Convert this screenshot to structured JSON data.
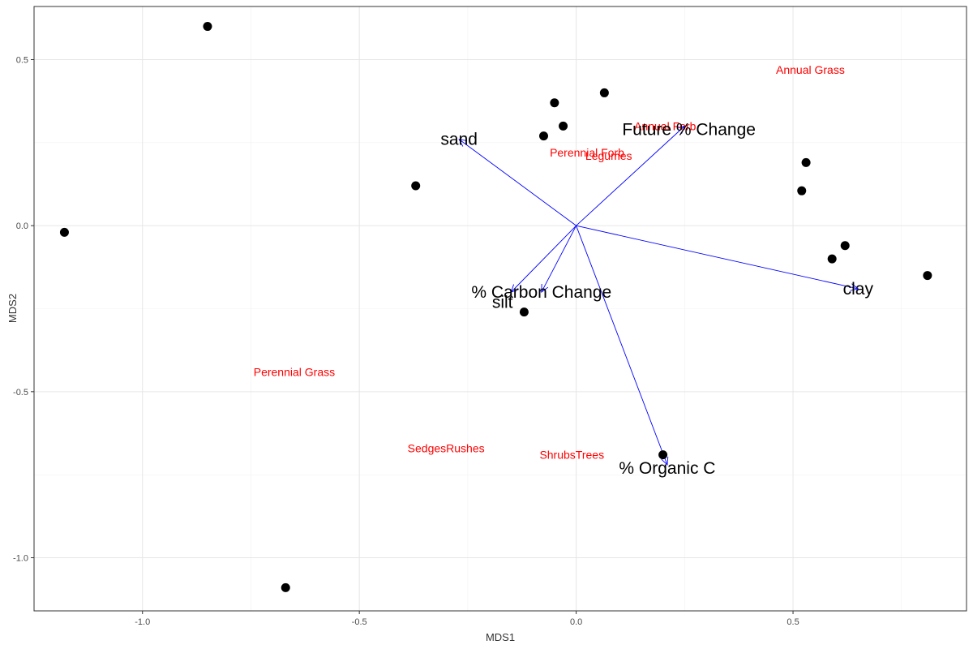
{
  "chart_data": {
    "type": "scatter",
    "title": "",
    "xlabel": "MDS1",
    "ylabel": "MDS2",
    "xlim": [
      -1.25,
      0.9
    ],
    "ylim": [
      -1.16,
      0.66
    ],
    "x_ticks": [
      -1.0,
      -0.5,
      0.0,
      0.5
    ],
    "x_tick_labels": [
      "-1.0",
      "-0.5",
      "0.0",
      "0.5"
    ],
    "y_ticks": [
      -1.0,
      -0.5,
      0.0,
      0.5
    ],
    "y_tick_labels": [
      "-1.0",
      "-0.5",
      "0.0",
      "0.5"
    ],
    "grid": true,
    "colors": {
      "points": "#000000",
      "vectors": "#0000ff",
      "species_labels": "#ff0000",
      "vector_labels": "#000000"
    },
    "sites": [
      {
        "x": -0.85,
        "y": 0.6
      },
      {
        "x": -1.18,
        "y": -0.02
      },
      {
        "x": -0.37,
        "y": 0.12
      },
      {
        "x": -0.67,
        "y": -1.09
      },
      {
        "x": -0.05,
        "y": 0.37
      },
      {
        "x": 0.065,
        "y": 0.4
      },
      {
        "x": -0.03,
        "y": 0.3
      },
      {
        "x": -0.075,
        "y": 0.27
      },
      {
        "x": 0.53,
        "y": 0.19
      },
      {
        "x": 0.52,
        "y": 0.105
      },
      {
        "x": 0.62,
        "y": -0.06
      },
      {
        "x": 0.59,
        "y": -0.1
      },
      {
        "x": 0.81,
        "y": -0.15
      },
      {
        "x": -0.12,
        "y": -0.26
      },
      {
        "x": 0.2,
        "y": -0.69
      }
    ],
    "species": [
      {
        "label": "Annual Grass",
        "x": 0.54,
        "y": 0.47
      },
      {
        "label": "Annual Forb",
        "x": 0.205,
        "y": 0.3
      },
      {
        "label": "Perennial Forb",
        "x": 0.025,
        "y": 0.22
      },
      {
        "label": "Legumes",
        "x": 0.075,
        "y": 0.21
      },
      {
        "label": "Perennial Grass",
        "x": -0.65,
        "y": -0.44
      },
      {
        "label": "SedgesRushes",
        "x": -0.3,
        "y": -0.67
      },
      {
        "label": "ShrubsTrees",
        "x": -0.01,
        "y": -0.69
      }
    ],
    "vectors": [
      {
        "label": "sand",
        "x": -0.27,
        "y": 0.26,
        "label_x": -0.27,
        "label_y": 0.26
      },
      {
        "label": "Future % Change",
        "x": 0.25,
        "y": 0.3,
        "label_x": 0.26,
        "label_y": 0.29
      },
      {
        "label": "clay",
        "x": 0.65,
        "y": -0.19,
        "label_x": 0.65,
        "label_y": -0.19
      },
      {
        "label": "% Carbon Change",
        "x": -0.08,
        "y": -0.2,
        "label_x": -0.08,
        "label_y": -0.2
      },
      {
        "label": "silt",
        "x": -0.15,
        "y": -0.2,
        "label_x": -0.17,
        "label_y": -0.23
      },
      {
        "label": "% Organic C",
        "x": 0.21,
        "y": -0.72,
        "label_x": 0.21,
        "label_y": -0.73
      }
    ]
  }
}
